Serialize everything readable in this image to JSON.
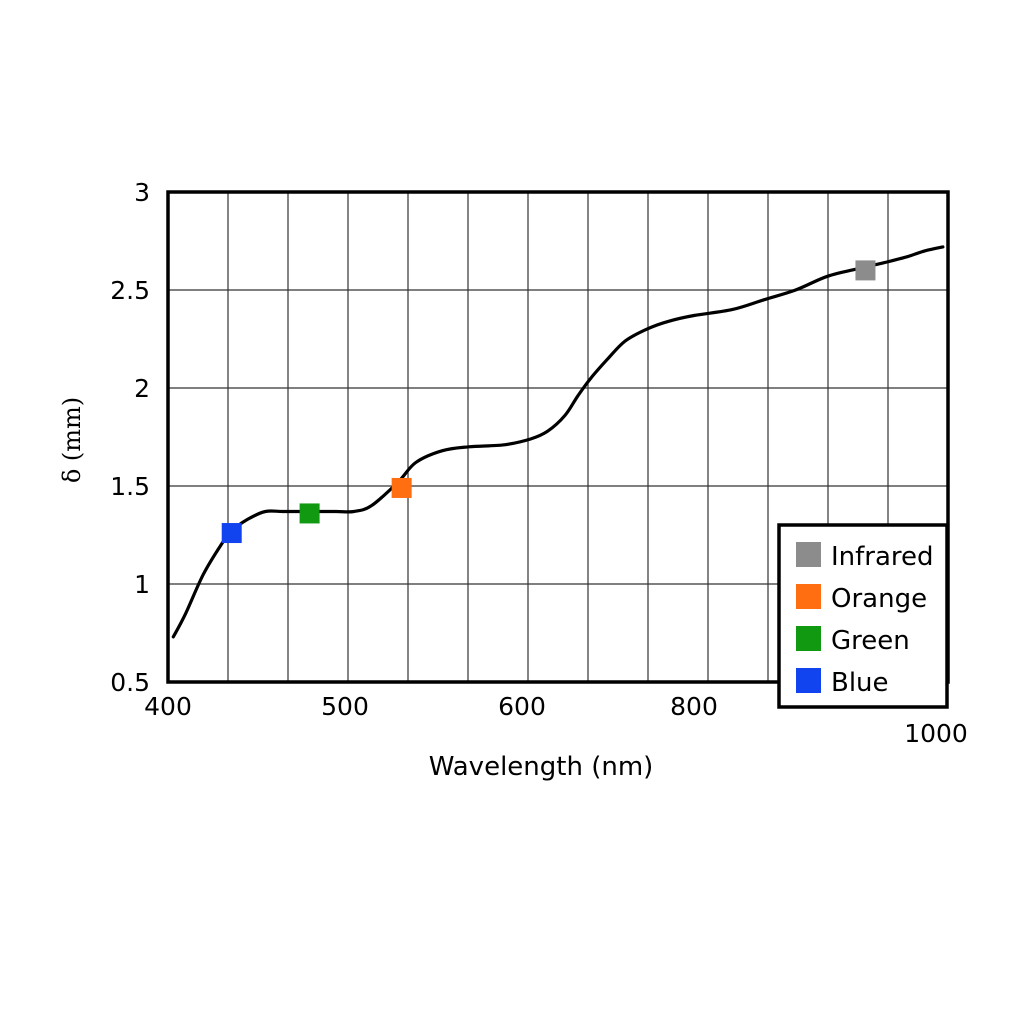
{
  "chart_data": {
    "type": "line",
    "title": "",
    "xlabel": "Wavelength (nm)",
    "ylabel": "δ (mm)",
    "x_ticks": [
      "400",
      "500",
      "600",
      "800",
      "1000"
    ],
    "y_ticks": [
      "0.5",
      "1",
      "1.5",
      "2",
      "2.5",
      "3"
    ],
    "ylim": [
      0.5,
      3
    ],
    "grid": true,
    "legend_position": "bottom-right",
    "series": [
      {
        "x": [
          403,
          410,
          420,
          430,
          436,
          445,
          455,
          465,
          480,
          495,
          505,
          515,
          530,
          540,
          555,
          570,
          590,
          610,
          630,
          650,
          665,
          680,
          700,
          720,
          745,
          770,
          800,
          830,
          855,
          880,
          905,
          930,
          950,
          968,
          982,
          996
        ],
        "y": [
          0.73,
          0.85,
          1.05,
          1.2,
          1.27,
          1.33,
          1.37,
          1.37,
          1.37,
          1.37,
          1.37,
          1.4,
          1.52,
          1.62,
          1.68,
          1.7,
          1.71,
          1.74,
          1.78,
          1.86,
          1.96,
          2.05,
          2.15,
          2.24,
          2.3,
          2.34,
          2.37,
          2.4,
          2.45,
          2.5,
          2.57,
          2.61,
          2.64,
          2.67,
          2.7,
          2.72
        ]
      }
    ],
    "markers": [
      {
        "name": "Blue",
        "x": 436,
        "y": 1.26,
        "color": "#1144ee"
      },
      {
        "name": "Green",
        "x": 480,
        "y": 1.36,
        "color": "#119911"
      },
      {
        "name": "Orange",
        "x": 532,
        "y": 1.49,
        "color": "#ff6f11"
      },
      {
        "name": "Infrared",
        "x": 935,
        "y": 2.6,
        "color": "#8c8c8c"
      }
    ],
    "legend": [
      {
        "label": "Infrared",
        "color": "#8c8c8c"
      },
      {
        "label": "Orange",
        "color": "#ff6f11"
      },
      {
        "label": "Green",
        "color": "#119911"
      },
      {
        "label": "Blue",
        "color": "#1144ee"
      }
    ]
  }
}
